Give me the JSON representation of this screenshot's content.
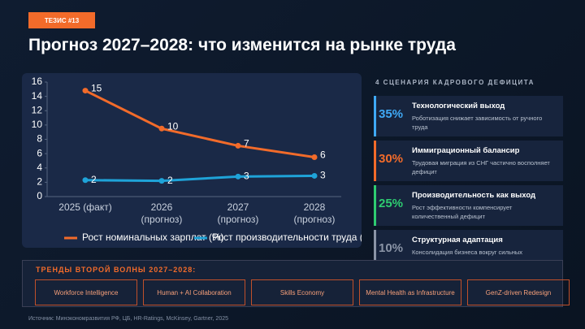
{
  "tag": "ТЕЗИС #13",
  "title": "Прогноз 2027–2028: что изменится на рынке труда",
  "chart_data": {
    "type": "line",
    "categories": [
      "2025 (факт)",
      "2026 (прогноз)",
      "2027 (прогноз)",
      "2028 (прогноз)"
    ],
    "series": [
      {
        "name": "Рост номинальных зарплат (%)",
        "color": "#f26b2a",
        "values": [
          14.8,
          9.5,
          7.1,
          5.5
        ],
        "value_labels": [
          "15",
          "10",
          "7",
          "6"
        ]
      },
      {
        "name": "Рост производительности труда (%)",
        "color": "#1fa3d8",
        "values": [
          2.3,
          2.2,
          2.8,
          2.9
        ],
        "value_labels": [
          "2",
          "2",
          "3",
          "3"
        ]
      }
    ],
    "ylim": [
      0,
      16
    ],
    "yticks": [
      0,
      2,
      4,
      6,
      8,
      10,
      12,
      14,
      16
    ],
    "grid": false,
    "legend": "bottom"
  },
  "scenarios": {
    "heading": "4 СЦЕНАРИЯ КАДРОВОГО ДЕФИЦИТА",
    "items": [
      {
        "percent": "35%",
        "title": "Технологический выход",
        "text": "Роботизация снижает зависимость от ручного труда",
        "color": "#3fa9f5"
      },
      {
        "percent": "30%",
        "title": "Иммиграционный балансир",
        "text": "Трудовая миграция из СНГ частично восполняет дефицит",
        "color": "#f26b2a"
      },
      {
        "percent": "25%",
        "title": "Производительность как выход",
        "text": "Рост эффективности компенсирует количественный дефицит",
        "color": "#2ecc71"
      },
      {
        "percent": "10%",
        "title": "Структурная адаптация",
        "text": "Консолидация бизнеса вокруг сильных",
        "color": "#8a94a6"
      }
    ]
  },
  "trends": {
    "heading": "ТРЕНДЫ ВТОРОЙ ВОЛНЫ 2027–2028:",
    "items": [
      "Workforce Intelligence",
      "Human + AI Collaboration",
      "Skills Economy",
      "Mental Health as Infrastructure",
      "GenZ-driven Redesign"
    ]
  },
  "source": "Источник: Минэкономразвития РФ, ЦБ, HR-Ratings, McKinsey, Gartner, 2025"
}
